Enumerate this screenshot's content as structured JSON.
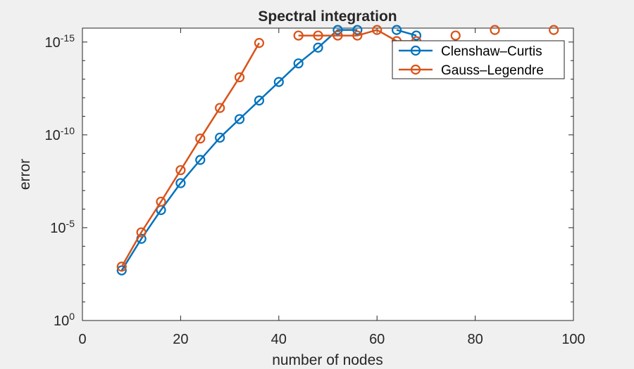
{
  "figure": {
    "background": "#f0f0f0",
    "axes_background": "#ffffff"
  },
  "chart_data": {
    "type": "line",
    "title": "Spectral integration",
    "xlabel": "number of nodes",
    "ylabel": "error",
    "xscale": "linear",
    "yscale": "log",
    "xlim": [
      0,
      100
    ],
    "ylim_log10": [
      -15.75,
      0
    ],
    "xticks": [
      0,
      20,
      40,
      60,
      80,
      100
    ],
    "xtick_labels": [
      "0",
      "20",
      "40",
      "60",
      "80",
      "100"
    ],
    "yticks_log10": [
      0,
      -5,
      -10,
      -15
    ],
    "ytick_labels": [
      {
        "base": "10",
        "exp": "0"
      },
      {
        "base": "10",
        "exp": "-5"
      },
      {
        "base": "10",
        "exp": "-10"
      },
      {
        "base": "10",
        "exp": "-15"
      }
    ],
    "grid": false,
    "legend_position": "top-right",
    "series": [
      {
        "name": "Clenshaw–Curtis",
        "color": "#0072bd",
        "marker": "circle",
        "points": [
          {
            "x": 8,
            "log10_y": -2.7
          },
          {
            "x": 12,
            "log10_y": -4.4
          },
          {
            "x": 16,
            "log10_y": -5.95
          },
          {
            "x": 20,
            "log10_y": -7.4
          },
          {
            "x": 24,
            "log10_y": -8.65
          },
          {
            "x": 28,
            "log10_y": -9.85
          },
          {
            "x": 32,
            "log10_y": -10.85
          },
          {
            "x": 36,
            "log10_y": -11.85
          },
          {
            "x": 40,
            "log10_y": -12.85
          },
          {
            "x": 44,
            "log10_y": -13.85
          },
          {
            "x": 48,
            "log10_y": -14.7
          },
          {
            "x": 52,
            "log10_y": -15.65
          },
          {
            "x": 56,
            "log10_y": -15.65
          },
          {
            "x": 64,
            "log10_y": -15.65
          },
          {
            "x": 68,
            "log10_y": -15.35
          }
        ],
        "line_breaks_after_x": [
          56
        ]
      },
      {
        "name": "Gauss–Legendre",
        "color": "#d95319",
        "marker": "circle",
        "points": [
          {
            "x": 8,
            "log10_y": -2.9
          },
          {
            "x": 12,
            "log10_y": -4.75
          },
          {
            "x": 16,
            "log10_y": -6.4
          },
          {
            "x": 20,
            "log10_y": -8.1
          },
          {
            "x": 24,
            "log10_y": -9.8
          },
          {
            "x": 28,
            "log10_y": -11.45
          },
          {
            "x": 32,
            "log10_y": -13.1
          },
          {
            "x": 36,
            "log10_y": -14.95
          },
          {
            "x": 44,
            "log10_y": -15.35
          },
          {
            "x": 48,
            "log10_y": -15.35
          },
          {
            "x": 52,
            "log10_y": -15.35
          },
          {
            "x": 56,
            "log10_y": -15.35
          },
          {
            "x": 60,
            "log10_y": -15.65
          },
          {
            "x": 64,
            "log10_y": -15.05
          },
          {
            "x": 68,
            "log10_y": -15.05
          },
          {
            "x": 76,
            "log10_y": -15.35
          },
          {
            "x": 84,
            "log10_y": -15.65
          },
          {
            "x": 96,
            "log10_y": -15.65
          }
        ],
        "line_breaks_after_x": [
          36,
          68,
          76,
          84
        ]
      }
    ]
  }
}
